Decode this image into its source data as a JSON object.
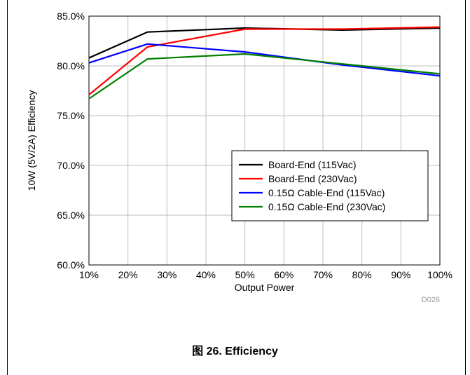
{
  "figure": {
    "caption_prefix": "图",
    "caption": "26. Efficiency",
    "code": "D026"
  },
  "chart_data": {
    "type": "line",
    "title": "",
    "xlabel": "Output Power",
    "ylabel": "10W (5V/2A) Efficiency",
    "xlim": [
      10,
      100
    ],
    "ylim": [
      60,
      85
    ],
    "x_ticks": [
      10,
      20,
      30,
      40,
      50,
      60,
      70,
      80,
      90,
      100
    ],
    "x_tick_labels": [
      "10%",
      "20%",
      "30%",
      "40%",
      "50%",
      "60%",
      "70%",
      "80%",
      "90%",
      "100%"
    ],
    "y_ticks": [
      60,
      65,
      70,
      75,
      80,
      85
    ],
    "y_tick_labels": [
      "60.0%",
      "65.0%",
      "70.0%",
      "75.0%",
      "80.0%",
      "85.0%"
    ],
    "grid": true,
    "legend_position": "lower-right",
    "series": [
      {
        "name": "Board-End (115Vac)",
        "color": "#000000",
        "x": [
          10,
          25,
          50,
          75,
          100
        ],
        "y": [
          80.8,
          83.4,
          83.8,
          83.6,
          83.8
        ]
      },
      {
        "name": "Board-End (230Vac)",
        "color": "#ff0000",
        "x": [
          10,
          25,
          50,
          75,
          100
        ],
        "y": [
          77.1,
          81.9,
          83.7,
          83.7,
          83.9
        ]
      },
      {
        "name": "0.15Ω Cable-End (115Vac)",
        "color": "#0000ff",
        "x": [
          10,
          25,
          50,
          75,
          100
        ],
        "y": [
          80.3,
          82.2,
          81.4,
          80.1,
          79.0
        ]
      },
      {
        "name": "0.15Ω Cable-End (230Vac)",
        "color": "#008000",
        "x": [
          10,
          25,
          50,
          75,
          100
        ],
        "y": [
          76.7,
          80.7,
          81.2,
          80.2,
          79.2
        ]
      }
    ]
  }
}
